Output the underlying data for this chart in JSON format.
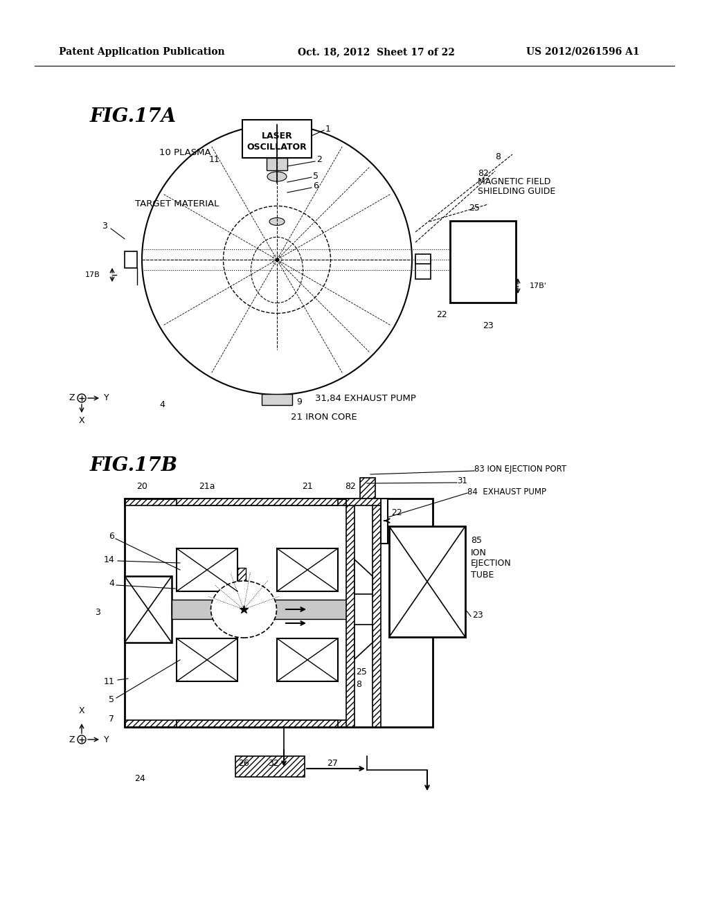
{
  "background_color": "#ffffff",
  "header_left": "Patent Application Publication",
  "header_center": "Oct. 18, 2012  Sheet 17 of 22",
  "header_right": "US 2012/0261596 A1",
  "fig17a_title": "FIG.17A",
  "fig17b_title": "FIG.17B"
}
